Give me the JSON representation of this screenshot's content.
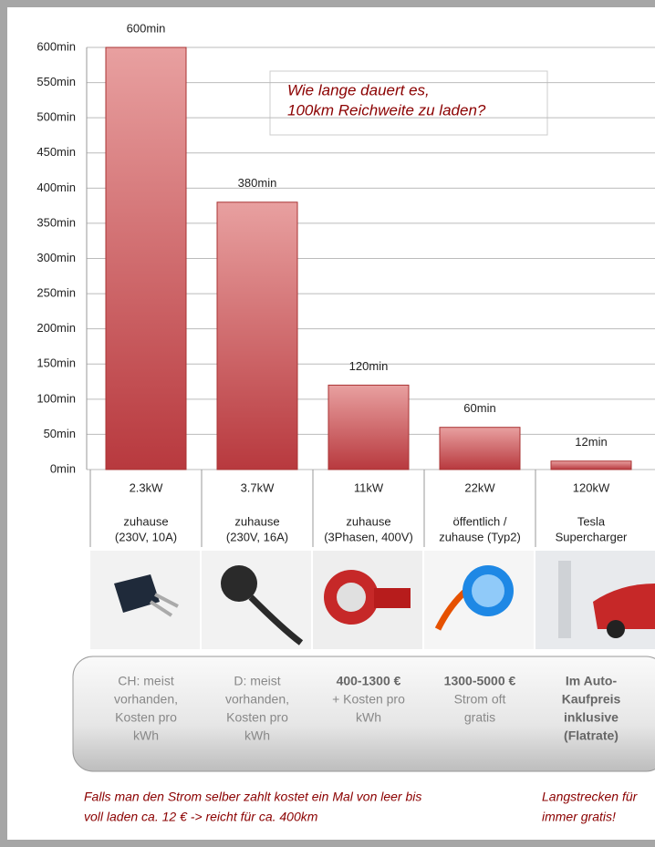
{
  "chart_data": {
    "type": "bar",
    "categories": [
      "2.3kW",
      "3.7kW",
      "11kW",
      "22kW",
      "120kW"
    ],
    "category_sublabels": [
      [
        "zuhause",
        "(230V, 10A)"
      ],
      [
        "zuhause",
        "(230V, 16A)"
      ],
      [
        "zuhause",
        "(3Phasen, 400V)"
      ],
      [
        "öffentlich /",
        "zuhause (Typ2)"
      ],
      [
        "Tesla",
        "Supercharger"
      ]
    ],
    "values": [
      600,
      380,
      120,
      60,
      12
    ],
    "value_labels": [
      "600min",
      "380min",
      "120min",
      "60min",
      "12min"
    ],
    "color": "#c0474d",
    "ylim": [
      0,
      600
    ],
    "yticks": [
      {
        "value": 0,
        "label": "0min"
      },
      {
        "value": 50,
        "label": "50min"
      },
      {
        "value": 100,
        "label": "100min"
      },
      {
        "value": 150,
        "label": "150min"
      },
      {
        "value": 200,
        "label": "200min"
      },
      {
        "value": 250,
        "label": "250min"
      },
      {
        "value": 300,
        "label": "300min"
      },
      {
        "value": 350,
        "label": "350min"
      },
      {
        "value": 400,
        "label": "400min"
      },
      {
        "value": 450,
        "label": "450min"
      },
      {
        "value": 500,
        "label": "500min"
      },
      {
        "value": 550,
        "label": "550min"
      },
      {
        "value": 600,
        "label": "600min"
      }
    ],
    "grid": true,
    "annotation": [
      "Wie lange dauert es,",
      "100km Reichweite zu laden?"
    ]
  },
  "cost_columns": [
    {
      "normal": [
        "CH: meist",
        "vorhanden,",
        "Kosten pro",
        "kWh"
      ]
    },
    {
      "normal": [
        "D: meist",
        "vorhanden,",
        "Kosten pro",
        "kWh"
      ]
    },
    {
      "bold": [
        "400-1300 €"
      ],
      "normal": [
        "+ Kosten pro",
        "kWh"
      ]
    },
    {
      "bold": [
        "1300-5000 €"
      ],
      "normal": [
        "Strom oft",
        "gratis"
      ]
    },
    {
      "bold": [
        "Im Auto-",
        "Kaufpreis",
        "inklusive",
        "(Flatrate)"
      ]
    }
  ],
  "footer_left": [
    "Falls man den Strom selber zahlt kostet ein Mal von leer bis",
    "voll laden ca. 12 € -> reicht für ca. 400km"
  ],
  "footer_right": [
    "Langstrecken für",
    "immer gratis!"
  ]
}
